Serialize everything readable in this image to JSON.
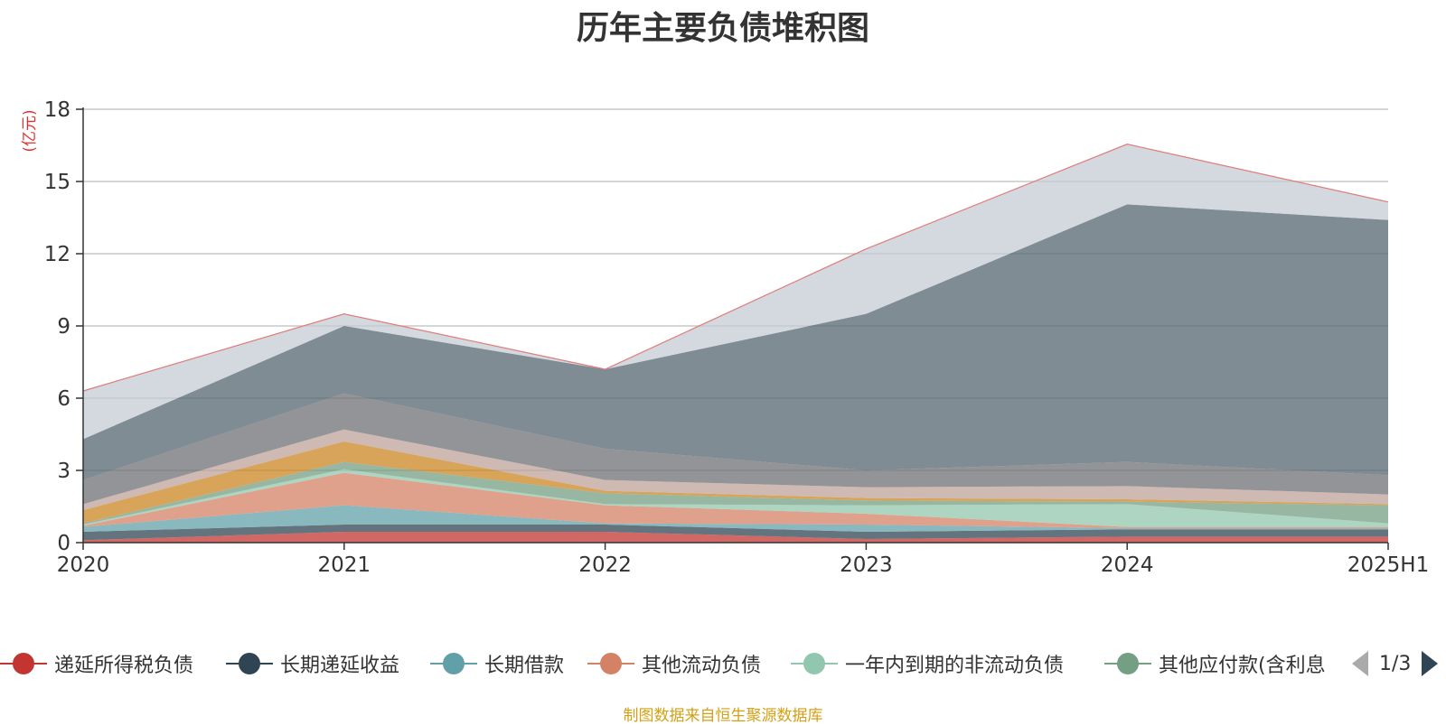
{
  "chart_data": {
    "type": "area",
    "title": "历年主要负债堆积图",
    "ylabel": "亿元",
    "unit_label": "(亿元)",
    "ylim": [
      0,
      18
    ],
    "yticks": [
      0,
      3,
      6,
      9,
      12,
      15,
      18
    ],
    "categories": [
      "2020",
      "2021",
      "2022",
      "2023",
      "2024",
      "2025H1"
    ],
    "grid": true,
    "series": [
      {
        "name": "递延所得税负债",
        "color": "#c23531",
        "values": [
          0.1,
          0.45,
          0.45,
          0.15,
          0.25,
          0.25
        ]
      },
      {
        "name": "长期递延收益",
        "color": "#2f4554",
        "values": [
          0.35,
          0.3,
          0.3,
          0.3,
          0.3,
          0.3
        ]
      },
      {
        "name": "长期借款",
        "color": "#61a0a8",
        "values": [
          0.2,
          0.8,
          0.05,
          0.3,
          0.05,
          0.05
        ]
      },
      {
        "name": "其他流动负债",
        "color": "#d48265",
        "values": [
          0.05,
          1.35,
          0.75,
          0.45,
          0.05,
          0.05
        ]
      },
      {
        "name": "一年内到期的非流动负债",
        "color": "#91c7ae",
        "values": [
          0.05,
          0.15,
          0.05,
          0.35,
          0.95,
          0.15
        ]
      },
      {
        "name": "其他应付款(含利息",
        "color": "#749f83",
        "values": [
          0.05,
          0.3,
          0.45,
          0.2,
          0.1,
          0.75
        ]
      },
      {
        "name": "",
        "color": "#ca8622",
        "values": [
          0.55,
          0.85,
          0.1,
          0.1,
          0.1,
          0.05
        ]
      },
      {
        "name": "",
        "color": "#bda29a",
        "values": [
          0.25,
          0.5,
          0.45,
          0.45,
          0.55,
          0.4
        ]
      },
      {
        "name": "",
        "color": "#6e7074",
        "values": [
          1.0,
          1.5,
          1.3,
          0.7,
          1.0,
          0.8
        ]
      },
      {
        "name": "",
        "color": "#546570",
        "values": [
          1.7,
          2.8,
          3.3,
          6.5,
          10.7,
          10.6
        ]
      },
      {
        "name": "",
        "color": "#c4ccd3",
        "values": [
          2.0,
          0.5,
          0.0,
          2.7,
          2.5,
          0.75
        ]
      }
    ]
  },
  "legend": {
    "items": [
      {
        "label": "递延所得税负债",
        "color": "#c23531"
      },
      {
        "label": "长期递延收益",
        "color": "#2f4554"
      },
      {
        "label": "长期借款",
        "color": "#61a0a8"
      },
      {
        "label": "其他流动负债",
        "color": "#d48265"
      },
      {
        "label": "一年内到期的非流动负债",
        "color": "#91c7ae"
      },
      {
        "label": "其他应付款(含利息",
        "color": "#749f83"
      }
    ],
    "page": "1/3"
  },
  "source": "制图数据来自恒生聚源数据库"
}
